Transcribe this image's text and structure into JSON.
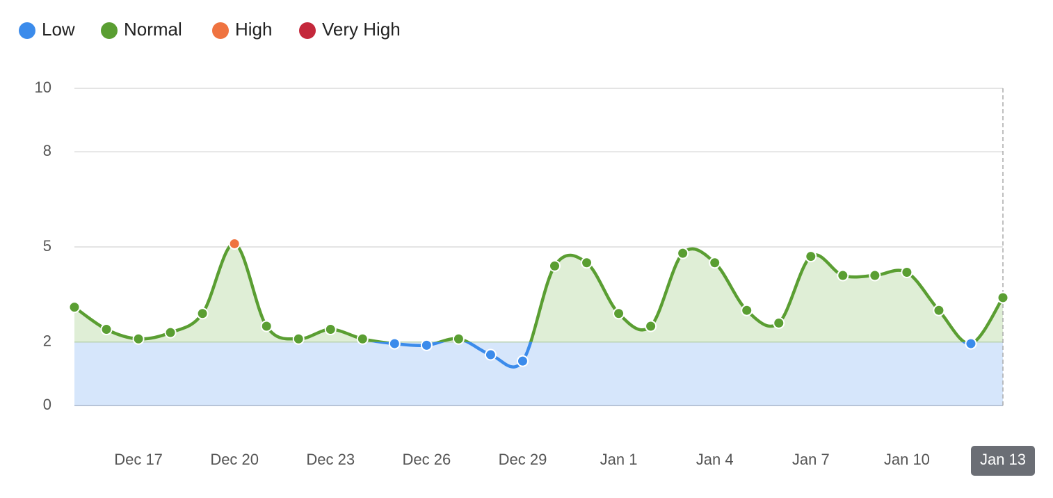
{
  "chart_data": {
    "type": "line",
    "categories": [
      null,
      null,
      "Dec 17",
      null,
      null,
      "Dec 20",
      null,
      null,
      "Dec 23",
      null,
      null,
      "Dec 26",
      null,
      null,
      "Dec 29",
      null,
      null,
      "Jan 1",
      null,
      null,
      "Jan 4",
      null,
      null,
      "Jan 7",
      null,
      null,
      "Jan 10",
      null,
      null,
      "Jan 13"
    ],
    "values": [
      3.1,
      2.4,
      2.1,
      2.3,
      2.9,
      5.1,
      2.5,
      2.1,
      2.4,
      2.1,
      1.95,
      1.9,
      2.1,
      1.6,
      1.4,
      4.4,
      4.5,
      2.9,
      2.5,
      4.8,
      4.5,
      3.0,
      2.6,
      4.7,
      4.1,
      4.1,
      4.2,
      3.0,
      1.95,
      3.4
    ],
    "zones": [
      {
        "name": "Low",
        "color": "#3b8beb",
        "fill": "#d6e6fb",
        "upper": 2
      },
      {
        "name": "Normal",
        "color": "#5a9e32",
        "fill": "#dfeed6",
        "upper": 5
      },
      {
        "name": "High",
        "color": "#ef7340"
      },
      {
        "name": "Very High",
        "color": "#c4283b"
      }
    ],
    "ylim": [
      0,
      10
    ],
    "yticks": [
      0,
      2,
      5,
      8,
      10
    ],
    "grid": true
  }
}
